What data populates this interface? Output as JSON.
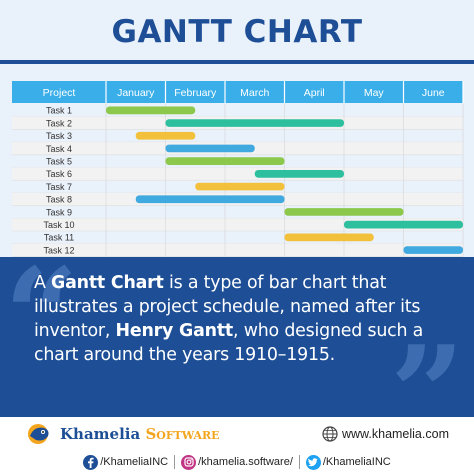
{
  "header": {
    "title": "GANTT CHART"
  },
  "chart_data": {
    "type": "gantt",
    "header_label": "Project",
    "months": [
      "January",
      "February",
      "March",
      "April",
      "May",
      "June"
    ],
    "tasks": [
      {
        "name": "Task 1",
        "start": 0.0,
        "end": 1.5,
        "color": "#8cc84b"
      },
      {
        "name": "Task 2",
        "start": 1.0,
        "end": 4.0,
        "color": "#2ebf9e"
      },
      {
        "name": "Task 3",
        "start": 0.5,
        "end": 1.5,
        "color": "#f3c03c"
      },
      {
        "name": "Task 4",
        "start": 1.0,
        "end": 2.5,
        "color": "#40a9df"
      },
      {
        "name": "Task 5",
        "start": 1.0,
        "end": 3.0,
        "color": "#8cc84b"
      },
      {
        "name": "Task 6",
        "start": 2.5,
        "end": 4.0,
        "color": "#2ebf9e"
      },
      {
        "name": "Task 7",
        "start": 1.5,
        "end": 3.0,
        "color": "#f3c03c"
      },
      {
        "name": "Task 8",
        "start": 0.5,
        "end": 3.0,
        "color": "#40a9df"
      },
      {
        "name": "Task 9",
        "start": 3.0,
        "end": 5.0,
        "color": "#8cc84b"
      },
      {
        "name": "Task 10",
        "start": 4.0,
        "end": 6.0,
        "color": "#2ebf9e"
      },
      {
        "name": "Task 11",
        "start": 3.0,
        "end": 4.5,
        "color": "#f3c03c"
      },
      {
        "name": "Task 12",
        "start": 5.0,
        "end": 6.0,
        "color": "#40a9df"
      }
    ],
    "colors": {
      "header": "#3aaee8",
      "header_text": "#ffffff",
      "row_alt": "#f2f2f2"
    }
  },
  "quote": {
    "p1": "A ",
    "b1": "Gantt Chart",
    "p2": " is a type of bar chart that illustrates a project schedule, named after its inventor, ",
    "b2": "Henry Gantt",
    "p3": ", who designed such a chart around the years 1910–1915."
  },
  "footer": {
    "brand_main": "Khamelia",
    "brand_accent": "Software",
    "website": "www.khamelia.com",
    "socials": [
      {
        "icon": "facebook-icon",
        "label": "/KhameliaINC",
        "color": "#1d4e96"
      },
      {
        "icon": "instagram-icon",
        "label": "/khamelia.software/",
        "color": "#c13584"
      },
      {
        "icon": "twitter-icon",
        "label": "/KhameliaINC",
        "color": "#1da1f2"
      }
    ]
  },
  "colors": {
    "brand_blue": "#1d4e96",
    "brand_orange": "#f3a51d",
    "top_bg": "#e9f1fb"
  }
}
